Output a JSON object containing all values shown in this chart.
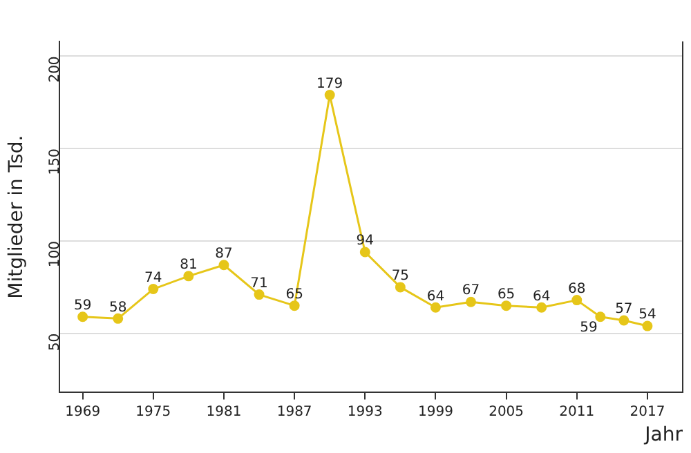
{
  "chart_data": {
    "type": "line",
    "xlabel": "Jahr",
    "ylabel": "Mitglieder in Tsd.",
    "x": [
      1969,
      1972,
      1975,
      1978,
      1981,
      1984,
      1987,
      1990,
      1993,
      1996,
      1999,
      2002,
      2005,
      2008,
      2011,
      2013,
      2015,
      2017
    ],
    "series": [
      {
        "color": "#e6c619",
        "values": [
          59,
          58,
          74,
          81,
          87,
          71,
          65,
          179,
          94,
          75,
          64,
          67,
          65,
          64,
          68,
          59,
          57,
          54
        ]
      }
    ],
    "xlim": [
      1967,
      2020
    ],
    "xticks": [
      1969,
      1975,
      1981,
      1987,
      1993,
      1999,
      2005,
      2011,
      2017
    ],
    "ylim": [
      18,
      208
    ],
    "yticks": [
      50,
      100,
      150,
      200
    ],
    "grid": "y",
    "marker": "circle",
    "line_style": "solid",
    "data_labels": true,
    "legend": false
  }
}
